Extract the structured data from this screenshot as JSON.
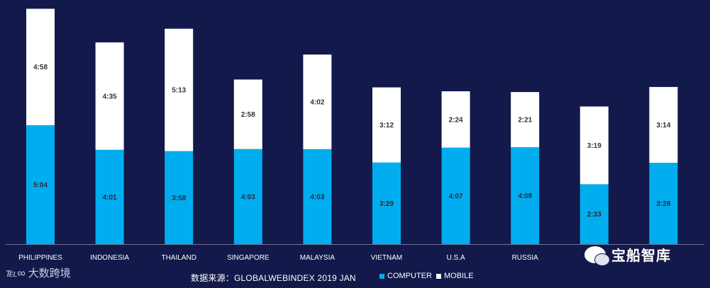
{
  "chart_data": {
    "type": "bar",
    "stacked": true,
    "categories": [
      "PHILIPPINES",
      "INDONESIA",
      "THAILAND",
      "SINGAPORE",
      "MALAYSIA",
      "VIETNAM",
      "U.S.A",
      "RUSSIA",
      "",
      ""
    ],
    "series": [
      {
        "name": "COMPUTER",
        "color": "#00aeef",
        "values": [
          304,
          241,
          238,
          243,
          243,
          209,
          247,
          248,
          153,
          208
        ],
        "labels": [
          "5:04",
          "4:01",
          "3:58",
          "4:03",
          "4:03",
          "3:29",
          "4:07",
          "4:08",
          "2:33",
          "3:28"
        ]
      },
      {
        "name": "MOBILE",
        "color": "#ffffff",
        "values": [
          298,
          275,
          313,
          178,
          242,
          192,
          144,
          141,
          199,
          194
        ],
        "labels": [
          "4:58",
          "4:35",
          "5:13",
          "2:58",
          "4:02",
          "3:12",
          "2:24",
          "2:21",
          "3:19",
          "3:14"
        ]
      }
    ],
    "unit": "minutes (H:MM)",
    "ylim": [
      0,
      610
    ]
  },
  "footer": {
    "source": "数据来源：GLOBALWEBINDEX 2019 JAN"
  },
  "legend": {
    "items": [
      {
        "label": "COMPUTER",
        "color": "#00aeef"
      },
      {
        "label": "MOBILE",
        "color": "#ffffff"
      }
    ]
  },
  "watermark_left": {
    "mark": "℡∞",
    "text": "大数跨境"
  },
  "watermark_right": {
    "text": "宝船智库"
  }
}
